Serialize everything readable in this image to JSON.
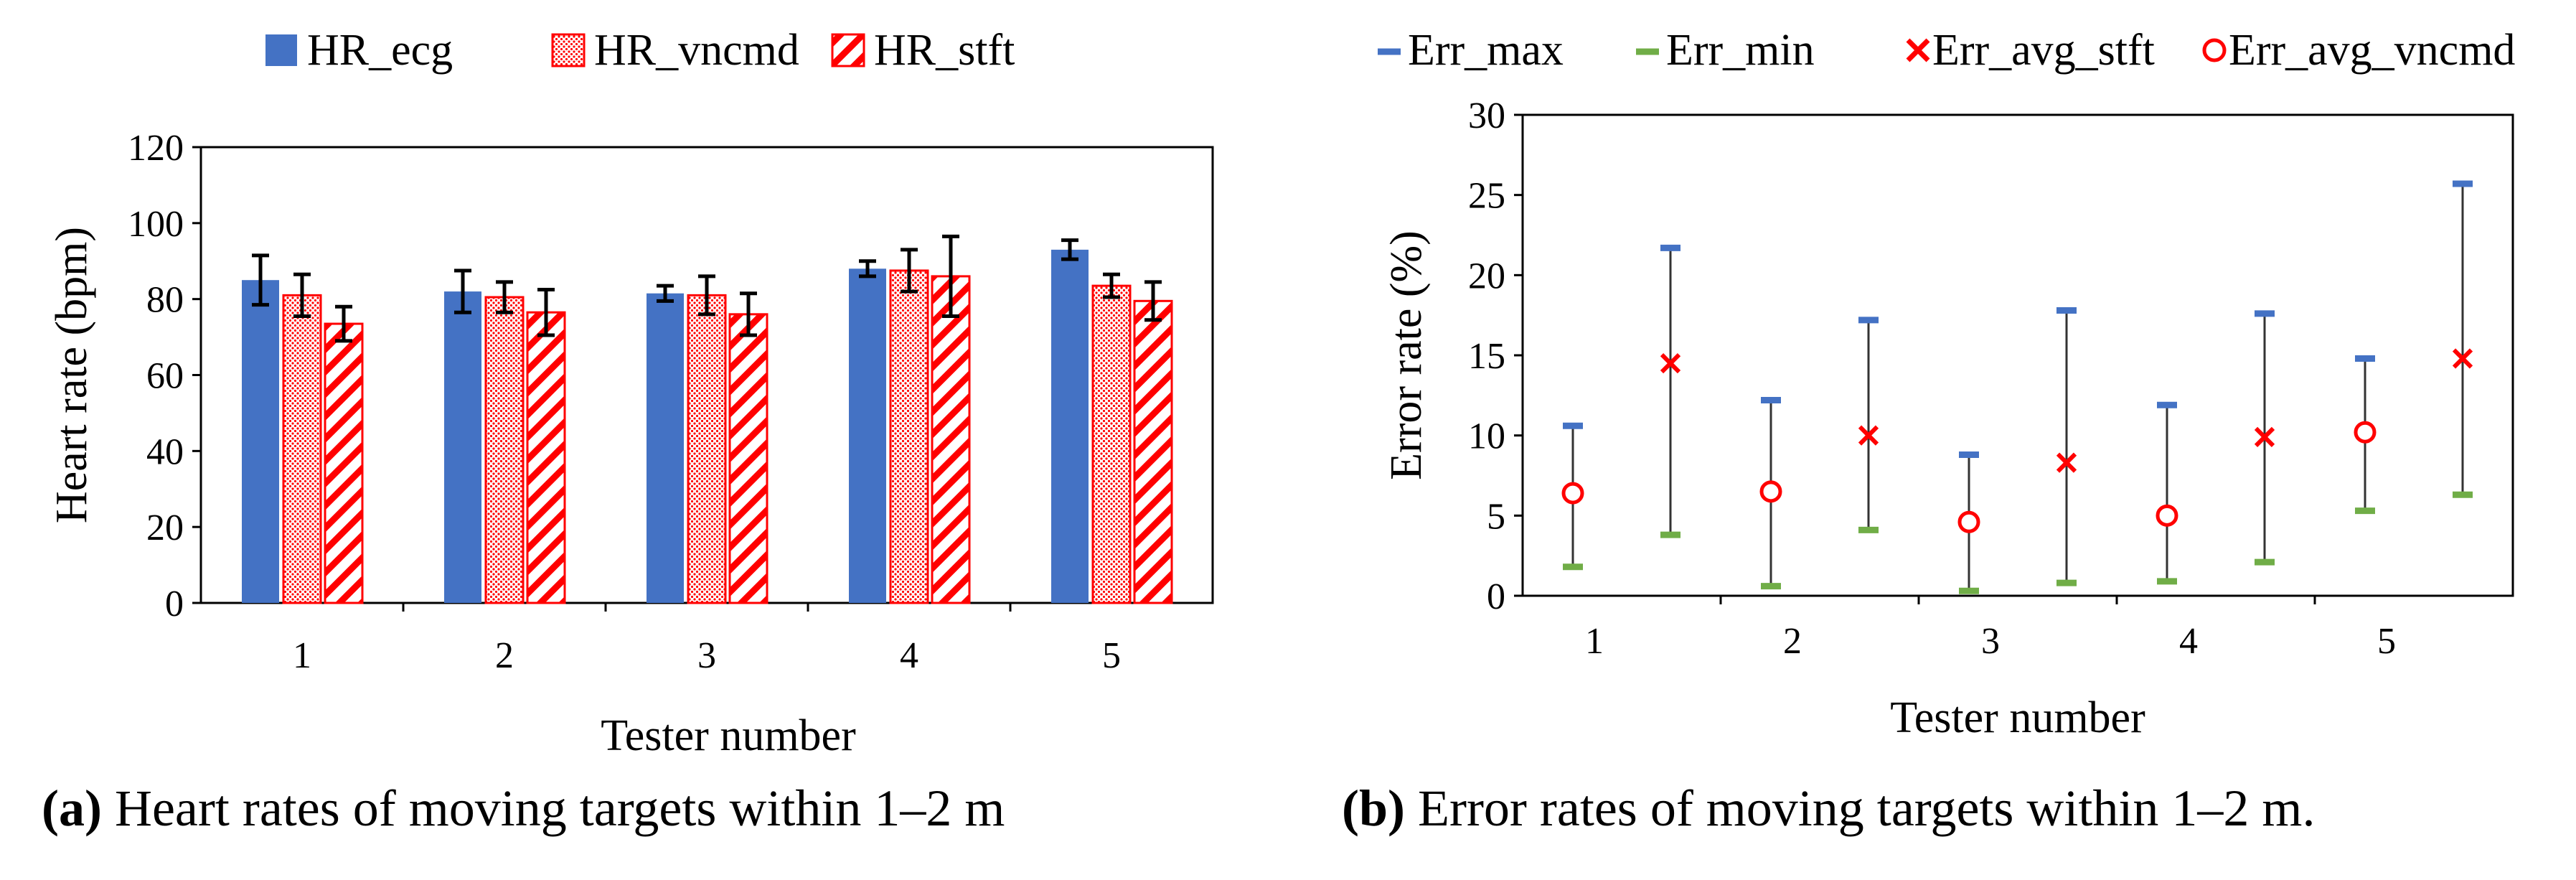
{
  "chart_data": [
    {
      "id": "a",
      "type": "bar",
      "ylabel": "Heart rate (bpm)",
      "xlabel": "Tester number",
      "categories": [
        "1",
        "2",
        "3",
        "4",
        "5"
      ],
      "ylim": [
        0,
        120
      ],
      "yticks": [
        0,
        20,
        40,
        60,
        80,
        100,
        120
      ],
      "grid": false,
      "legend_position": "top",
      "series": [
        {
          "name": "HR_ecg",
          "style": "solid",
          "color": "#4472C4",
          "values": [
            85,
            82,
            81.5,
            88,
            93
          ],
          "errors": [
            6.5,
            5.5,
            2,
            2,
            2.5
          ]
        },
        {
          "name": "HR_vncmd",
          "style": "dotted",
          "color": "#FF0000",
          "values": [
            81,
            80.5,
            81,
            87.5,
            83.5
          ],
          "errors": [
            5.5,
            4,
            5,
            5.5,
            3
          ]
        },
        {
          "name": "HR_stft",
          "style": "hatched",
          "color": "#FF0000",
          "values": [
            73.5,
            76.5,
            76,
            86,
            79.5
          ],
          "errors": [
            4.5,
            6,
            5.5,
            10.5,
            5
          ]
        }
      ],
      "caption_label": "(a)",
      "caption_text": " Heart rates of moving targets within 1–2 m"
    },
    {
      "id": "b",
      "type": "scatter",
      "ylabel": "Error rate (%)",
      "xlabel": "Tester number",
      "categories": [
        "1",
        "2",
        "3",
        "4",
        "5"
      ],
      "ylim": [
        0,
        30
      ],
      "yticks": [
        0,
        5,
        10,
        15,
        20,
        25,
        30
      ],
      "grid": false,
      "legend_position": "top",
      "series": [
        {
          "name": "Err_max",
          "marker": "dash",
          "color": "#4472C4",
          "values": [
            [
              10.6,
              21.7
            ],
            [
              12.2,
              17.2
            ],
            [
              8.8,
              17.8
            ],
            [
              11.9,
              17.6
            ],
            [
              14.8,
              25.7
            ]
          ]
        },
        {
          "name": "Err_min",
          "marker": "dash",
          "color": "#70AD47",
          "values": [
            [
              1.8,
              3.8
            ],
            [
              0.6,
              4.1
            ],
            [
              0.3,
              0.8
            ],
            [
              0.9,
              2.1
            ],
            [
              5.3,
              6.3
            ]
          ]
        },
        {
          "name": "Err_avg_stft",
          "marker": "x",
          "color": "#FF0000",
          "values": [
            14.5,
            10.0,
            8.3,
            9.9,
            14.8
          ]
        },
        {
          "name": "Err_avg_vncmd",
          "marker": "circle",
          "color": "#FF0000",
          "values": [
            6.4,
            6.5,
            4.6,
            5.0,
            10.2
          ]
        }
      ],
      "caption_label": "(b)",
      "caption_text": " Error rates of moving targets within 1–2 m."
    }
  ]
}
